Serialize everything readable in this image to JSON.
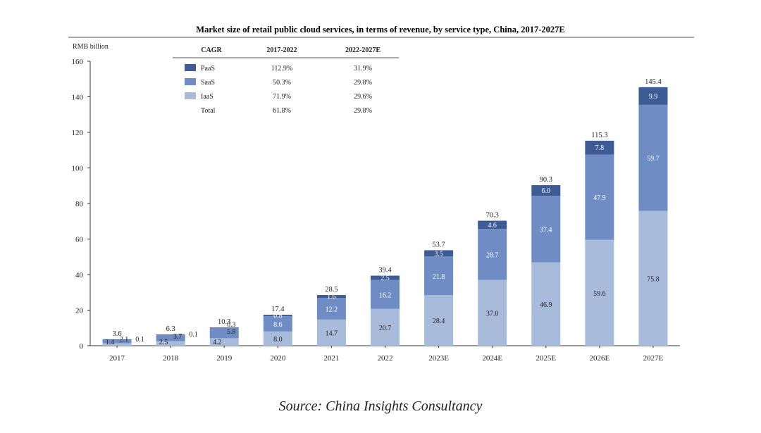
{
  "chart_data": {
    "type": "bar",
    "stacked": true,
    "title": "Market size of retail public cloud services, in terms of revenue, by service type, China, 2017-2027E",
    "ylabel": "RMB billion",
    "xlabel": "",
    "ylim": [
      0,
      160
    ],
    "yticks": [
      0,
      20,
      40,
      60,
      80,
      100,
      120,
      140,
      160
    ],
    "categories": [
      "2017",
      "2018",
      "2019",
      "2020",
      "2021",
      "2022",
      "2023E",
      "2024E",
      "2025E",
      "2026E",
      "2027E"
    ],
    "series": [
      {
        "name": "IaaS",
        "color": "#a9bbdb",
        "values": [
          1.4,
          2.5,
          4.2,
          8.0,
          14.7,
          20.7,
          28.4,
          37.0,
          46.9,
          59.6,
          75.8
        ]
      },
      {
        "name": "SaaS",
        "color": "#6f8dc4",
        "values": [
          2.1,
          3.7,
          5.8,
          8.6,
          12.2,
          16.2,
          21.8,
          28.7,
          37.4,
          47.9,
          59.7
        ]
      },
      {
        "name": "PaaS",
        "color": "#3d5c95",
        "values": [
          0.1,
          0.1,
          0.3,
          0.8,
          1.6,
          2.5,
          3.5,
          4.6,
          6.0,
          7.8,
          9.9
        ]
      }
    ],
    "totals": [
      "3.6",
      "6.3",
      "10.3",
      "17.4",
      "28.5",
      "39.4",
      "53.7",
      "70.3",
      "90.3",
      "115.3",
      "145.4"
    ],
    "value_labels": {
      "IaaS": [
        "1.4",
        "2.5",
        "4.2",
        "8.0",
        "14.7",
        "20.7",
        "28.4",
        "37.0",
        "46.9",
        "59.6",
        "75.8"
      ],
      "SaaS": [
        "2.1",
        "3.7",
        "5.8",
        "8.6",
        "12.2",
        "16.2",
        "21.8",
        "28.7",
        "37.4",
        "47.9",
        "59.7"
      ],
      "PaaS": [
        "0.1",
        "0.1",
        "0.3",
        "0.8",
        "1.6",
        "2.5",
        "3.5",
        "4.6",
        "6.0",
        "7.8",
        "9.9"
      ]
    },
    "cagr_table": {
      "headers": [
        "CAGR",
        "2017-2022",
        "2022-2027E"
      ],
      "rows": [
        {
          "name": "PaaS",
          "color": "#3d5c95",
          "v1": "112.9%",
          "v2": "31.9%"
        },
        {
          "name": "SaaS",
          "color": "#6f8dc4",
          "v1": "50.3%",
          "v2": "29.8%"
        },
        {
          "name": "IaaS",
          "color": "#a9bbdb",
          "v1": "71.9%",
          "v2": "29.6%"
        },
        {
          "name": "Total",
          "color": null,
          "v1": "61.8%",
          "v2": "29.8%"
        }
      ]
    }
  },
  "source": "Source: China Insights Consultancy"
}
